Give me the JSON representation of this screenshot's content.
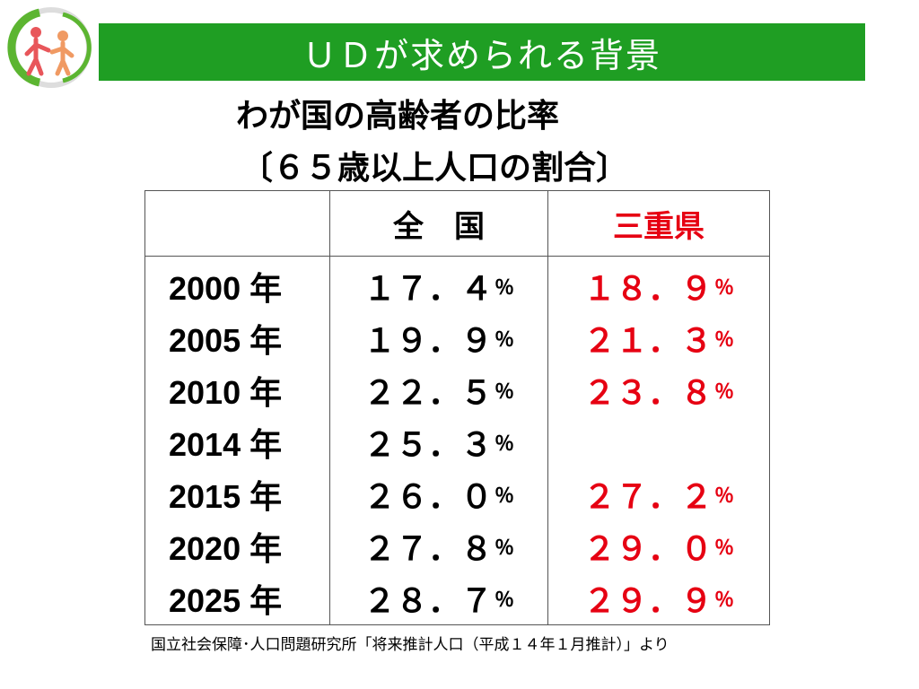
{
  "title": "ＵＤが求められる背景",
  "subtitle_line1": "わが国の高齢者の比率",
  "subtitle_line2": "〔６５歳以上人口の割合〕",
  "table": {
    "headers": [
      "",
      "全　国",
      "三重県"
    ],
    "rows": [
      {
        "year": "2000 年",
        "nation": "１７．４",
        "mie": "１８．９"
      },
      {
        "year": "2005 年",
        "nation": "１９．９",
        "mie": "２１．３"
      },
      {
        "year": "2010 年",
        "nation": "２２．５",
        "mie": "２３．８"
      },
      {
        "year": "2014 年",
        "nation": "２５．３",
        "mie": ""
      },
      {
        "year": "2015 年",
        "nation": "２６．０",
        "mie": "２７．２"
      },
      {
        "year": "2020 年",
        "nation": "２７．８",
        "mie": "２９．０"
      },
      {
        "year": "2025 年",
        "nation": "２８．７",
        "mie": "２９．９"
      }
    ],
    "unit": "％"
  },
  "footnote": "国立社会保障･人口問題研究所「将来推計人口（平成１４年１月推計）」より",
  "colors": {
    "banner": "#1f9e23",
    "accent_red": "#e60012",
    "logo_green": "#5cb531",
    "logo_red": "#e8565a",
    "logo_orange": "#f09a63"
  },
  "icons": {
    "logo": "universal-design-logo"
  }
}
